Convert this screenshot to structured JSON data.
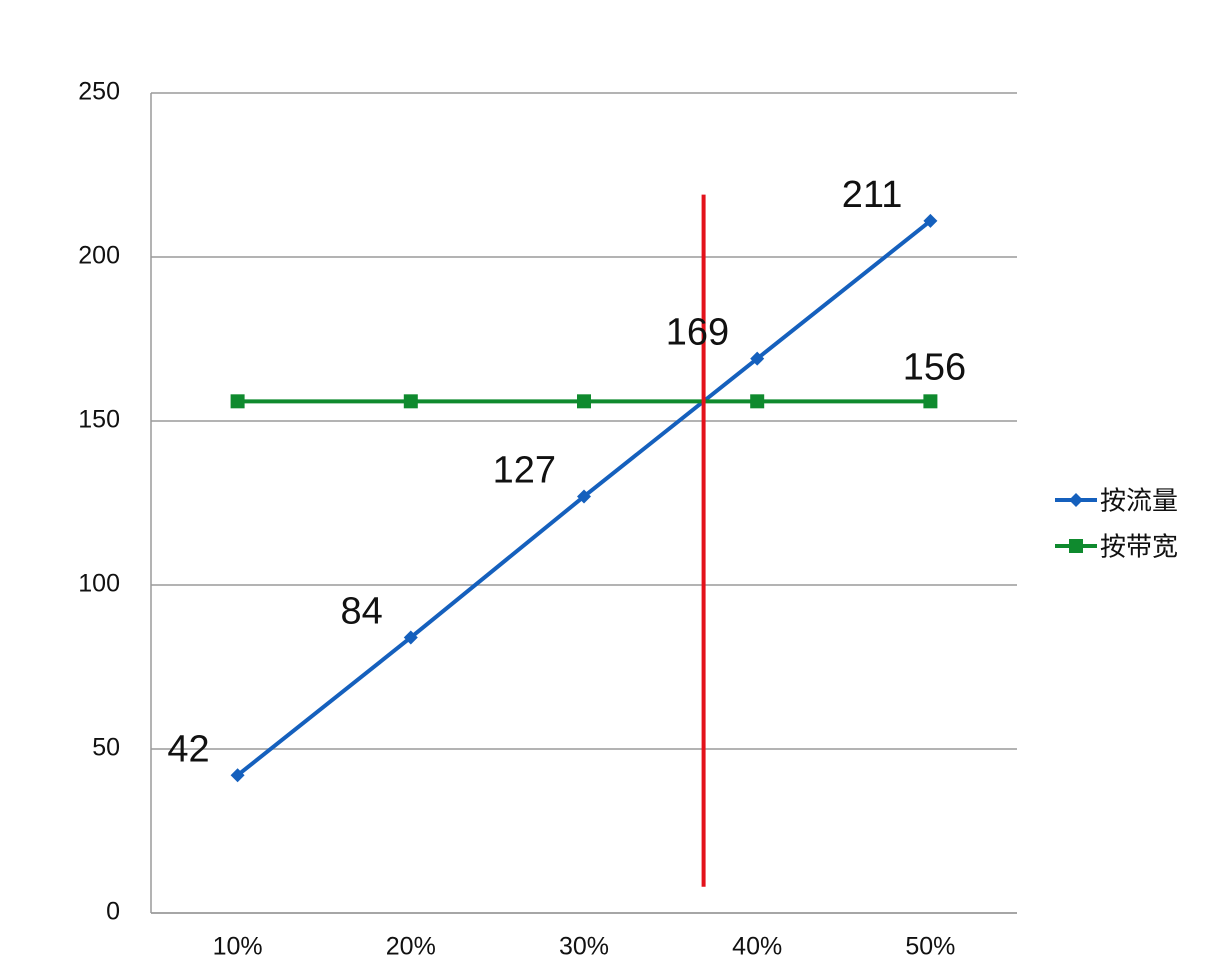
{
  "chart_data": {
    "type": "line",
    "categories": [
      "10%",
      "20%",
      "30%",
      "40%",
      "50%"
    ],
    "series": [
      {
        "name": "按流量",
        "color": "#1560bd",
        "marker": "diamond",
        "data_labels": "all",
        "values": [
          42,
          84,
          127,
          169,
          211
        ]
      },
      {
        "name": "按带宽",
        "color": "#0f8a2e",
        "marker": "square",
        "data_labels": "last",
        "values": [
          156,
          156,
          156,
          156,
          156
        ]
      }
    ],
    "ylim": [
      0,
      250
    ],
    "yticks": [
      0,
      50,
      100,
      150,
      200,
      250
    ],
    "grid": true,
    "legend": "right",
    "reference_line": {
      "at": "crossover",
      "color": "#e3121b",
      "y_from": 8,
      "y_to": 219
    }
  }
}
